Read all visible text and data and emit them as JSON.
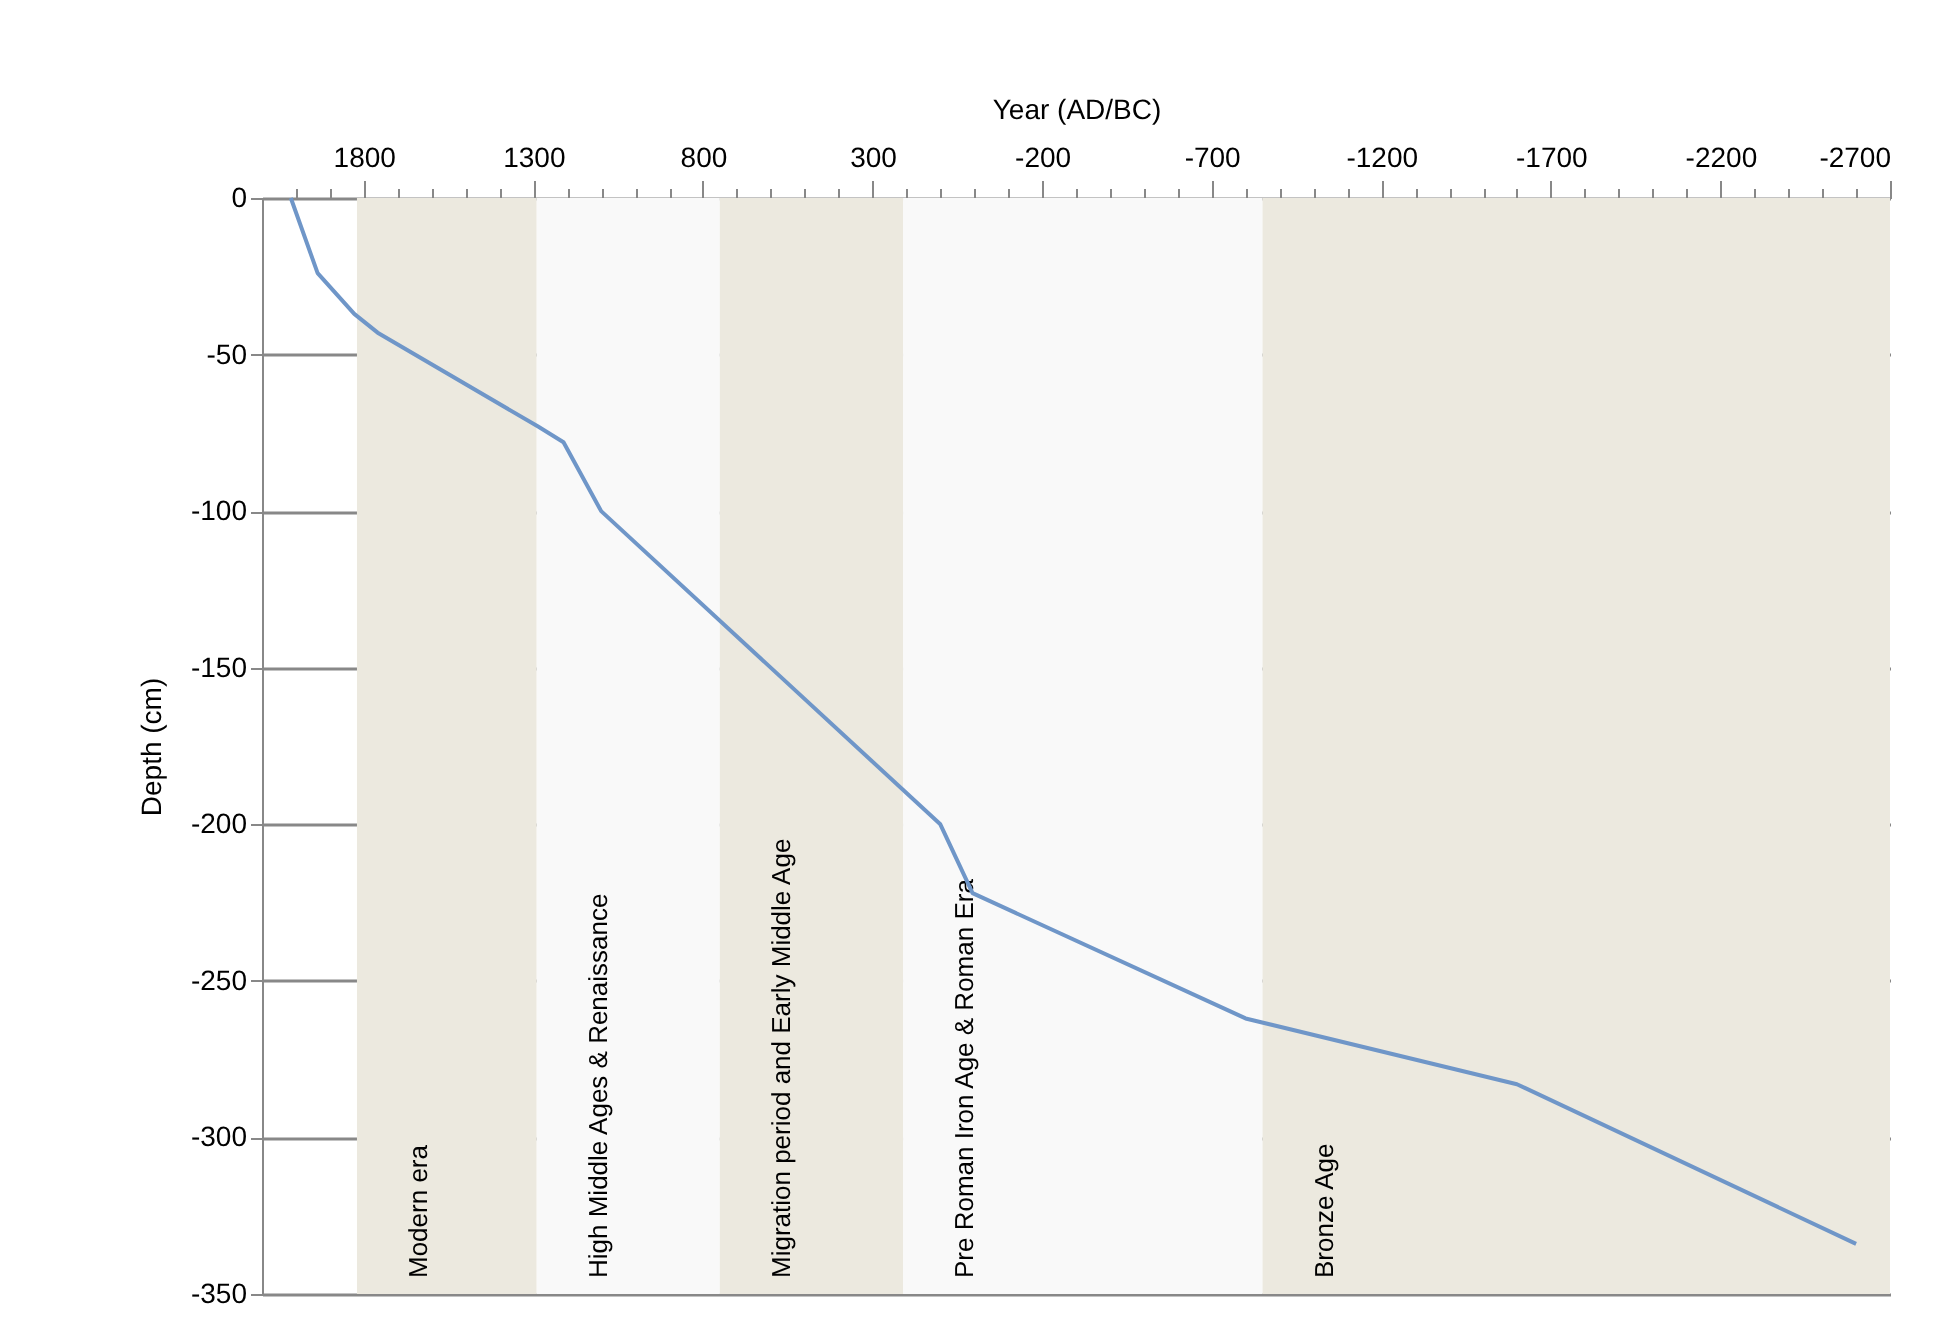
{
  "chart_data": {
    "type": "line",
    "xlabel": "Year (AD/BC)",
    "ylabel": "Depth (cm)",
    "x": [
      2015,
      1936,
      1828,
      1759,
      1286,
      1211,
      1100,
      100,
      5,
      -800,
      -1600,
      -2600
    ],
    "series": [
      {
        "color": "#6f96c8",
        "values": [
          0,
          -24,
          -37,
          -43,
          -73,
          -78,
          -100,
          -200,
          -222,
          -262,
          -283,
          -334
        ]
      }
    ],
    "xlim": [
      2100,
      -2700
    ],
    "xticks": [
      {
        "value": 2000,
        "label": null
      },
      {
        "value": 1900,
        "label": null
      },
      1800,
      {
        "value": 1700,
        "label": null
      },
      {
        "value": 1600,
        "label": null
      },
      {
        "value": 1500,
        "label": null
      },
      {
        "value": 1400,
        "label": null
      },
      1300,
      {
        "value": 1200,
        "label": null
      },
      {
        "value": 1100,
        "label": null
      },
      {
        "value": 1000,
        "label": null
      },
      {
        "value": 900,
        "label": null
      },
      800,
      {
        "value": 700,
        "label": null
      },
      {
        "value": 600,
        "label": null
      },
      {
        "value": 500,
        "label": null
      },
      {
        "value": 400,
        "label": null
      },
      300,
      {
        "value": 200,
        "label": null
      },
      {
        "value": 100,
        "label": null
      },
      {
        "value": 0,
        "label": null
      },
      {
        "value": -100,
        "label": null
      },
      -200,
      {
        "value": -300,
        "label": null
      },
      {
        "value": -400,
        "label": null
      },
      {
        "value": -500,
        "label": null
      },
      {
        "value": -600,
        "label": null
      },
      -700,
      {
        "value": -800,
        "label": null
      },
      {
        "value": -900,
        "label": null
      },
      {
        "value": -1000,
        "label": null
      },
      {
        "value": -1100,
        "label": null
      },
      -1200,
      {
        "value": -1300,
        "label": null
      },
      {
        "value": -1400,
        "label": null
      },
      {
        "value": -1500,
        "label": null
      },
      {
        "value": -1600,
        "label": null
      },
      -1700,
      {
        "value": -1800,
        "label": null
      },
      {
        "value": -1900,
        "label": null
      },
      {
        "value": -2000,
        "label": null
      },
      {
        "value": -2100,
        "label": null
      },
      -2200,
      {
        "value": -2300,
        "label": null
      },
      {
        "value": -2400,
        "label": null
      },
      {
        "value": -2500,
        "label": null
      },
      {
        "value": -2600,
        "label": null
      },
      -2700
    ],
    "ylim": [
      -350,
      0
    ],
    "yticks": [
      -350,
      -300,
      -250,
      -200,
      -150,
      -100,
      -50,
      0
    ],
    "grid": "y",
    "bands": [
      {
        "axis": "x",
        "from": 1820,
        "to": 1290,
        "label": "Modern era",
        "color": "#ece9df"
      },
      {
        "axis": "x",
        "from": 1290,
        "to": 750,
        "label": "High Middle Ages & Renaissance",
        "color": "#f9f9f9"
      },
      {
        "axis": "x",
        "from": 750,
        "to": 210,
        "label": "Migration period and Early Middle Age",
        "color": "#ece9df"
      },
      {
        "axis": "x",
        "from": 210,
        "to": -850,
        "label": "Pre Roman Iron Age & Roman Era",
        "color": "#f9f9f9"
      },
      {
        "axis": "x",
        "from": -850,
        "to": -2700,
        "label": "Bronze Age",
        "color": "#ece9df"
      }
    ]
  }
}
